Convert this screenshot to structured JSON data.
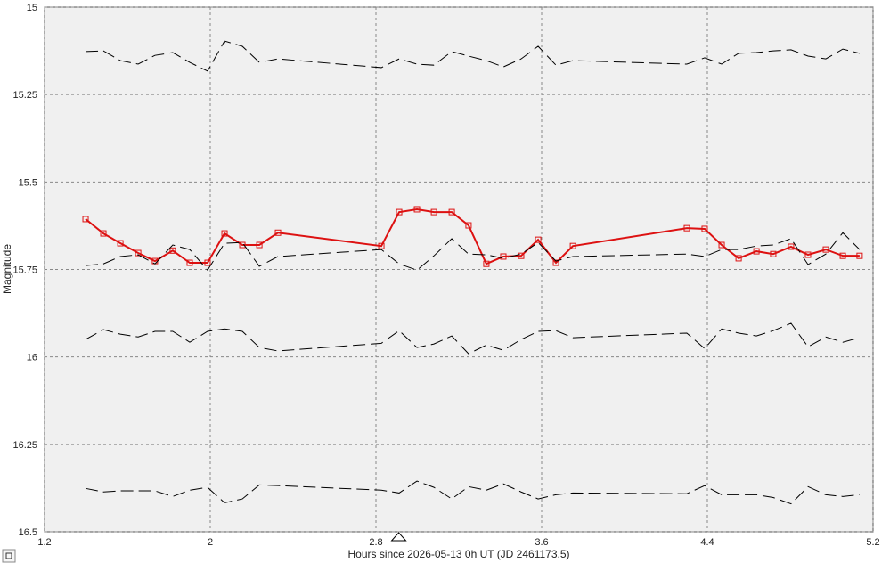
{
  "chart_data": {
    "type": "line",
    "x_label": "Hours since 2026-05-13 0h UT (JD 2461173.5)",
    "y_label": "Magnitude",
    "xlim": [
      1.2,
      5.2
    ],
    "xticks": [
      1.2,
      2,
      2.8,
      3.6,
      4.4,
      5.2
    ],
    "ylim": [
      15,
      16.5
    ],
    "yticks": [
      15,
      15.25,
      15.5,
      15.75,
      16,
      16.25,
      16.5
    ],
    "y_inverted": true,
    "grid": true,
    "time_marker": 2.91,
    "x": [
      1.398,
      1.484,
      1.566,
      1.652,
      1.733,
      1.819,
      1.901,
      1.987,
      2.069,
      2.155,
      2.237,
      2.327,
      2.826,
      2.912,
      2.998,
      3.08,
      3.166,
      3.247,
      3.333,
      3.415,
      3.501,
      3.583,
      3.669,
      3.751,
      4.301,
      4.387,
      4.469,
      4.551,
      4.637,
      4.718,
      4.804,
      4.886,
      4.972,
      5.054,
      5.135
    ],
    "series": [
      {
        "color": "#dd1111",
        "marker": "square",
        "dashed": false,
        "values": [
          15.606,
          15.647,
          15.675,
          15.703,
          15.726,
          15.696,
          15.731,
          15.731,
          15.647,
          15.68,
          15.68,
          15.645,
          15.683,
          15.586,
          15.578,
          15.586,
          15.586,
          15.624,
          15.734,
          15.713,
          15.711,
          15.665,
          15.731,
          15.683,
          15.632,
          15.634,
          15.68,
          15.718,
          15.698,
          15.706,
          15.685,
          15.708,
          15.693,
          15.711,
          15.711
        ]
      },
      {
        "color": "#000000",
        "dashed": true,
        "values": [
          15.127,
          15.125,
          15.153,
          15.163,
          15.138,
          15.13,
          15.158,
          15.183,
          15.097,
          15.112,
          15.158,
          15.148,
          15.173,
          15.148,
          15.163,
          15.166,
          15.127,
          15.14,
          15.153,
          15.171,
          15.148,
          15.112,
          15.166,
          15.153,
          15.163,
          15.145,
          15.163,
          15.132,
          15.13,
          15.125,
          15.122,
          15.14,
          15.148,
          15.12,
          15.132
        ]
      },
      {
        "color": "#000000",
        "dashed": true,
        "values": [
          15.739,
          15.734,
          15.713,
          15.708,
          15.734,
          15.68,
          15.693,
          15.752,
          15.675,
          15.673,
          15.741,
          15.713,
          15.693,
          15.734,
          15.752,
          15.711,
          15.662,
          15.706,
          15.708,
          15.718,
          15.706,
          15.673,
          15.726,
          15.713,
          15.706,
          15.713,
          15.693,
          15.693,
          15.683,
          15.68,
          15.662,
          15.736,
          15.706,
          15.645,
          15.693
        ]
      },
      {
        "color": "#000000",
        "dashed": true,
        "values": [
          15.95,
          15.922,
          15.935,
          15.943,
          15.927,
          15.927,
          15.958,
          15.927,
          15.92,
          15.927,
          15.973,
          15.983,
          15.961,
          15.925,
          15.973,
          15.963,
          15.94,
          15.991,
          15.966,
          15.981,
          15.95,
          15.927,
          15.925,
          15.945,
          15.932,
          15.976,
          15.92,
          15.932,
          15.94,
          15.925,
          15.904,
          15.971,
          15.943,
          15.958,
          15.945
        ]
      },
      {
        "color": "#000000",
        "dashed": true,
        "values": [
          16.376,
          16.386,
          16.383,
          16.383,
          16.383,
          16.399,
          16.381,
          16.373,
          16.417,
          16.406,
          16.366,
          16.368,
          16.381,
          16.389,
          16.355,
          16.373,
          16.406,
          16.371,
          16.381,
          16.363,
          16.386,
          16.406,
          16.394,
          16.389,
          16.391,
          16.368,
          16.394,
          16.394,
          16.394,
          16.402,
          16.42,
          16.371,
          16.394,
          16.399,
          16.394
        ]
      }
    ]
  }
}
